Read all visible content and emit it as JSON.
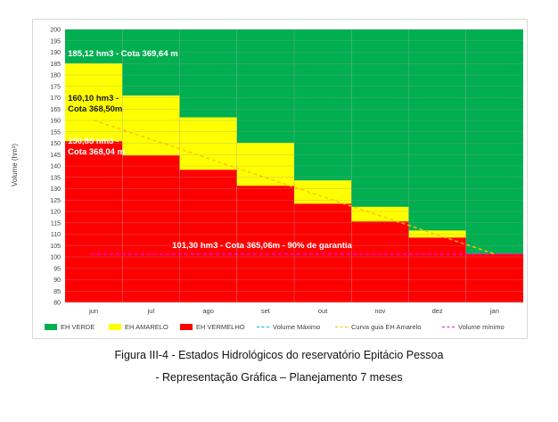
{
  "chart_data": {
    "type": "bar",
    "title": "",
    "xlabel": "",
    "ylabel": "Volume (hm³)",
    "ylim": [
      80,
      200
    ],
    "ytick_step": 5,
    "categories": [
      "jun",
      "jul",
      "ago",
      "set",
      "out",
      "nov",
      "dez",
      "jan"
    ],
    "series": [
      {
        "name": "EH VERDE",
        "color": "#00b050",
        "top": 200
      },
      {
        "name": "EH AMARELO",
        "color": "#ffff00",
        "values": [
          185.12,
          170.9,
          161.3,
          150.2,
          133.6,
          122.0,
          111.6,
          101.3
        ]
      },
      {
        "name": "EH VERMELHO",
        "color": "#ff0000",
        "values": [
          150.85,
          144.6,
          138.3,
          131.3,
          123.4,
          115.6,
          108.5,
          101.3
        ]
      }
    ],
    "lines": [
      {
        "name": "Volume Máximo",
        "color": "#00b0f0",
        "style": "dashed"
      },
      {
        "name": "Curva guia EH Amarelo",
        "color": "#ffc000",
        "style": "dashed",
        "points": [
          {
            "x": "jun",
            "y": 160.1
          },
          {
            "x": "jan",
            "y": 101.3
          }
        ]
      },
      {
        "name": "Volume mínimo",
        "color": "#ff00ff",
        "style": "dashed",
        "value": 101.3
      }
    ],
    "annotations": [
      {
        "text": "185,12 hm3 - Cota 369,64 m",
        "category": "jun",
        "y": 188.5,
        "color": "light"
      },
      {
        "text_lines": [
          "160,10 hm3 -",
          "Cota 368,50m"
        ],
        "category": "jun",
        "y": 167.5,
        "color": "dark"
      },
      {
        "text_lines": [
          "150,85 hm3 -",
          "Cota 368,04 m"
        ],
        "category": "jun",
        "y": 148.5,
        "color": "light"
      },
      {
        "text": "101,30 hm3 - Cota 365,06m - 90% de garantia",
        "category": "out",
        "y": 104.5,
        "color": "light"
      }
    ]
  },
  "caption": {
    "line1": "Figura III-4 - Estados Hidrológicos do reservatório Epitácio Pessoa",
    "line2": "- Representação Gráfica – Planejamento 7 meses"
  }
}
